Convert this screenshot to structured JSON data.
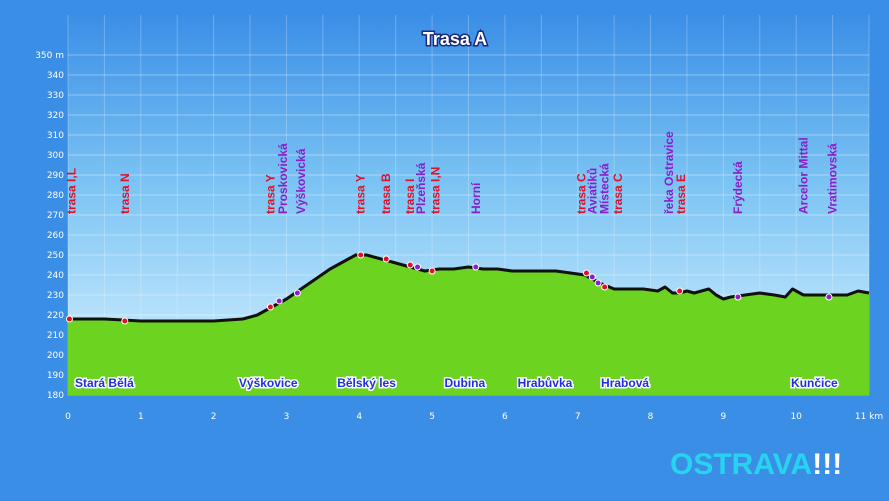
{
  "colors": {
    "background": "#3a8ee6",
    "area_top": "#bfe6ff",
    "profile_fill": "#6cd421",
    "profile_line": "#111111",
    "label_red": "#e0102a",
    "label_purple": "#8a1ec8",
    "place_blue": "#1d2fe0",
    "logo_cyan": "#27d3ee",
    "logo_white": "#ffffff"
  },
  "logo": {
    "text": "OSTRAVA",
    "exclaim": "!!!"
  },
  "chart_data": {
    "type": "area",
    "title": "Trasa A",
    "xlim": [
      0,
      11
    ],
    "ylim": [
      180,
      350
    ],
    "x_ticks": [
      "0",
      "1",
      "2",
      "3",
      "4",
      "5",
      "6",
      "7",
      "8",
      "9",
      "10",
      "11 km"
    ],
    "y_ticks": [
      "180",
      "190",
      "200",
      "210",
      "220",
      "230",
      "240",
      "250",
      "260",
      "270",
      "280",
      "290",
      "300",
      "310",
      "320",
      "330",
      "340",
      "350 m"
    ],
    "grid": true,
    "profile": {
      "x": [
        0,
        0.5,
        1.0,
        1.5,
        2.0,
        2.4,
        2.6,
        2.8,
        3.0,
        3.2,
        3.4,
        3.6,
        3.8,
        3.95,
        4.1,
        4.3,
        4.5,
        4.7,
        4.9,
        5.1,
        5.3,
        5.5,
        5.7,
        5.9,
        6.1,
        6.3,
        6.5,
        6.7,
        6.9,
        7.1,
        7.3,
        7.5,
        7.7,
        7.9,
        8.1,
        8.2,
        8.3,
        8.4,
        8.5,
        8.6,
        8.8,
        8.9,
        9.0,
        9.1,
        9.3,
        9.5,
        9.7,
        9.85,
        9.95,
        10.1,
        10.3,
        10.5,
        10.7,
        10.85,
        11.0
      ],
      "elevation": [
        218,
        218,
        217,
        217,
        217,
        218,
        220,
        224,
        228,
        233,
        238,
        243,
        247,
        250,
        250,
        248,
        246,
        244,
        242,
        243,
        243,
        244,
        243,
        243,
        242,
        242,
        242,
        242,
        241,
        240,
        236,
        233,
        233,
        233,
        232,
        234,
        231,
        231,
        232,
        231,
        233,
        230,
        228,
        229,
        230,
        231,
        230,
        229,
        233,
        230,
        230,
        230,
        230,
        232,
        231
      ]
    },
    "markers": [
      {
        "x": 0.02,
        "y": 218,
        "color": "red"
      },
      {
        "x": 0.78,
        "y": 217,
        "color": "red"
      },
      {
        "x": 2.78,
        "y": 224,
        "color": "red"
      },
      {
        "x": 2.9,
        "y": 227,
        "color": "purple"
      },
      {
        "x": 3.15,
        "y": 231,
        "color": "purple"
      },
      {
        "x": 4.02,
        "y": 250,
        "color": "red"
      },
      {
        "x": 4.37,
        "y": 248,
        "color": "red"
      },
      {
        "x": 4.7,
        "y": 245,
        "color": "red"
      },
      {
        "x": 4.8,
        "y": 244,
        "color": "purple"
      },
      {
        "x": 5.0,
        "y": 242,
        "color": "red"
      },
      {
        "x": 5.6,
        "y": 244,
        "color": "purple"
      },
      {
        "x": 7.12,
        "y": 241,
        "color": "red"
      },
      {
        "x": 7.2,
        "y": 239,
        "color": "purple"
      },
      {
        "x": 7.28,
        "y": 236,
        "color": "purple"
      },
      {
        "x": 7.37,
        "y": 234,
        "color": "red"
      },
      {
        "x": 8.4,
        "y": 232,
        "color": "red"
      },
      {
        "x": 9.2,
        "y": 229,
        "color": "purple"
      },
      {
        "x": 10.45,
        "y": 229,
        "color": "purple"
      }
    ],
    "stop_labels": [
      {
        "text": "trasa I,L",
        "x": 0.05,
        "color": "red"
      },
      {
        "text": "trasa N",
        "x": 0.78,
        "color": "red"
      },
      {
        "text": "trasa Y",
        "x": 2.78,
        "color": "red"
      },
      {
        "text": "Proskovická",
        "x": 2.95,
        "color": "purple"
      },
      {
        "text": "Výškovická",
        "x": 3.2,
        "color": "purple"
      },
      {
        "text": "trasa Y",
        "x": 4.02,
        "color": "red"
      },
      {
        "text": "trasa B",
        "x": 4.37,
        "color": "red"
      },
      {
        "text": "trasa I",
        "x": 4.7,
        "color": "red"
      },
      {
        "text": "Plzeňská",
        "x": 4.85,
        "color": "purple"
      },
      {
        "text": "trasa I,N",
        "x": 5.05,
        "color": "red"
      },
      {
        "text": "Horní",
        "x": 5.6,
        "color": "purple"
      },
      {
        "text": "trasa C",
        "x": 7.05,
        "color": "red"
      },
      {
        "text": "Aviatiků",
        "x": 7.2,
        "color": "purple"
      },
      {
        "text": "Místecká",
        "x": 7.37,
        "color": "purple"
      },
      {
        "text": "trasa C",
        "x": 7.55,
        "color": "red"
      },
      {
        "text": "řeka Ostravice",
        "x": 8.25,
        "color": "purple"
      },
      {
        "text": "trasa E",
        "x": 8.42,
        "color": "red"
      },
      {
        "text": "Frýdecká",
        "x": 9.2,
        "color": "purple"
      },
      {
        "text": "Arcelor Mittal",
        "x": 10.1,
        "color": "purple"
      },
      {
        "text": "Vratimovská",
        "x": 10.5,
        "color": "purple"
      }
    ],
    "place_labels": [
      {
        "text": "Stará Bělá",
        "x": 0.5
      },
      {
        "text": "Výškovice",
        "x": 2.75
      },
      {
        "text": "Bělský les",
        "x": 4.1
      },
      {
        "text": "Dubina",
        "x": 5.45
      },
      {
        "text": "Hrabůvka",
        "x": 6.55
      },
      {
        "text": "Hrabová",
        "x": 7.65
      },
      {
        "text": "Kunčice",
        "x": 10.25
      }
    ]
  }
}
